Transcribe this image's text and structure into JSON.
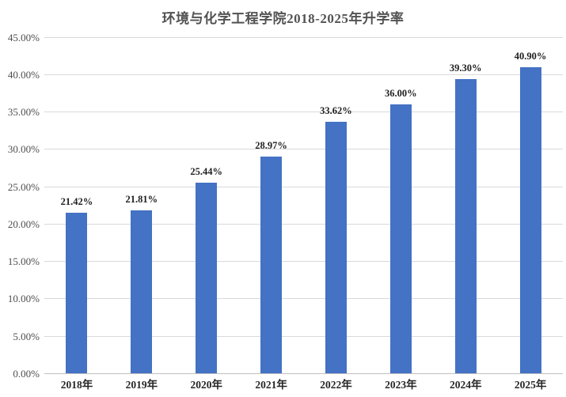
{
  "chart_data": {
    "type": "bar",
    "title": "环境与化学工程学院2018-2025年升学率",
    "categories": [
      "2018年",
      "2019年",
      "2020年",
      "2021年",
      "2022年",
      "2023年",
      "2024年",
      "2025年"
    ],
    "values": [
      21.42,
      21.81,
      25.44,
      28.97,
      33.62,
      36.0,
      39.3,
      40.9
    ],
    "data_labels": [
      "21.42%",
      "21.81%",
      "25.44%",
      "28.97%",
      "33.62%",
      "36.00%",
      "39.30%",
      "40.90%"
    ],
    "y_ticks": [
      {
        "value": 0,
        "label": "0.00%"
      },
      {
        "value": 5,
        "label": "5.00%"
      },
      {
        "value": 10,
        "label": "10.00%"
      },
      {
        "value": 15,
        "label": "15.00%"
      },
      {
        "value": 20,
        "label": "20.00%"
      },
      {
        "value": 25,
        "label": "25.00%"
      },
      {
        "value": 30,
        "label": "30.00%"
      },
      {
        "value": 35,
        "label": "35.00%"
      },
      {
        "value": 40,
        "label": "40.00%"
      },
      {
        "value": 45,
        "label": "45.00%"
      }
    ],
    "ylim": [
      0,
      45
    ],
    "xlabel": "",
    "ylabel": "",
    "grid": true,
    "legend": "none",
    "bar_color": "#4472C4",
    "gridline_color": "#D9D9D9",
    "axis_line_color": "#C0C0C0",
    "background_color": "#FFFFFF"
  }
}
